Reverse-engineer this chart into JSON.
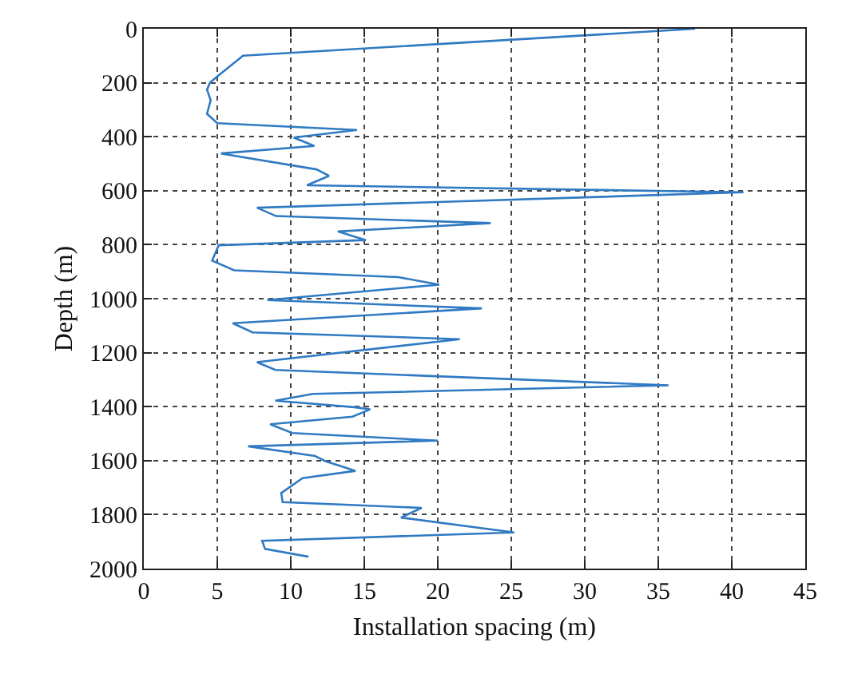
{
  "chart_data": {
    "type": "line",
    "xlabel": "Installation spacing (m)",
    "ylabel": "Depth (m)",
    "series": [
      {
        "color": "#2f7ac2",
        "x": [
          37.5,
          6.75,
          5,
          4.5,
          4.3,
          4.55,
          4.3,
          5,
          14.5,
          10.2,
          11.6,
          5.25,
          11.75,
          12.6,
          11.1,
          40.8,
          7.7,
          9,
          23.6,
          13.2,
          15.1,
          5.1,
          4.65,
          6.15,
          17.3,
          20.1,
          8.4,
          23,
          6.05,
          7.4,
          21.5,
          7.7,
          8.95,
          35.7,
          11.5,
          8.95,
          14.3,
          15.4,
          14.2,
          8.6,
          10.1,
          20,
          7.1,
          11.65,
          12.35,
          13.5,
          14.4,
          10.8,
          9.35,
          9.45,
          18.9,
          17.5,
          25.2,
          8.05,
          8.25,
          11.2
        ],
        "values": [
          0,
          100,
          177,
          200,
          226,
          265,
          315,
          350,
          375,
          403,
          434,
          462,
          521,
          545,
          580,
          606,
          663,
          694,
          720,
          751,
          783,
          802,
          859,
          895,
          920,
          948,
          1005,
          1036,
          1091,
          1125,
          1150,
          1235,
          1264,
          1321,
          1353,
          1378,
          1402,
          1410,
          1437,
          1465,
          1498,
          1526,
          1547,
          1583,
          1602,
          1622,
          1638,
          1665,
          1720,
          1754,
          1775,
          1811,
          1866,
          1897,
          1927,
          1956
        ]
      }
    ],
    "xlim": [
      0,
      45
    ],
    "xticks": [
      0,
      5,
      10,
      15,
      20,
      25,
      30,
      35,
      40,
      45
    ],
    "ylim": [
      2000,
      0
    ],
    "yticks": [
      0,
      200,
      400,
      600,
      800,
      1000,
      1200,
      1400,
      1600,
      1800,
      2000
    ],
    "grid": true,
    "marker": "none",
    "line_style": "solid"
  }
}
